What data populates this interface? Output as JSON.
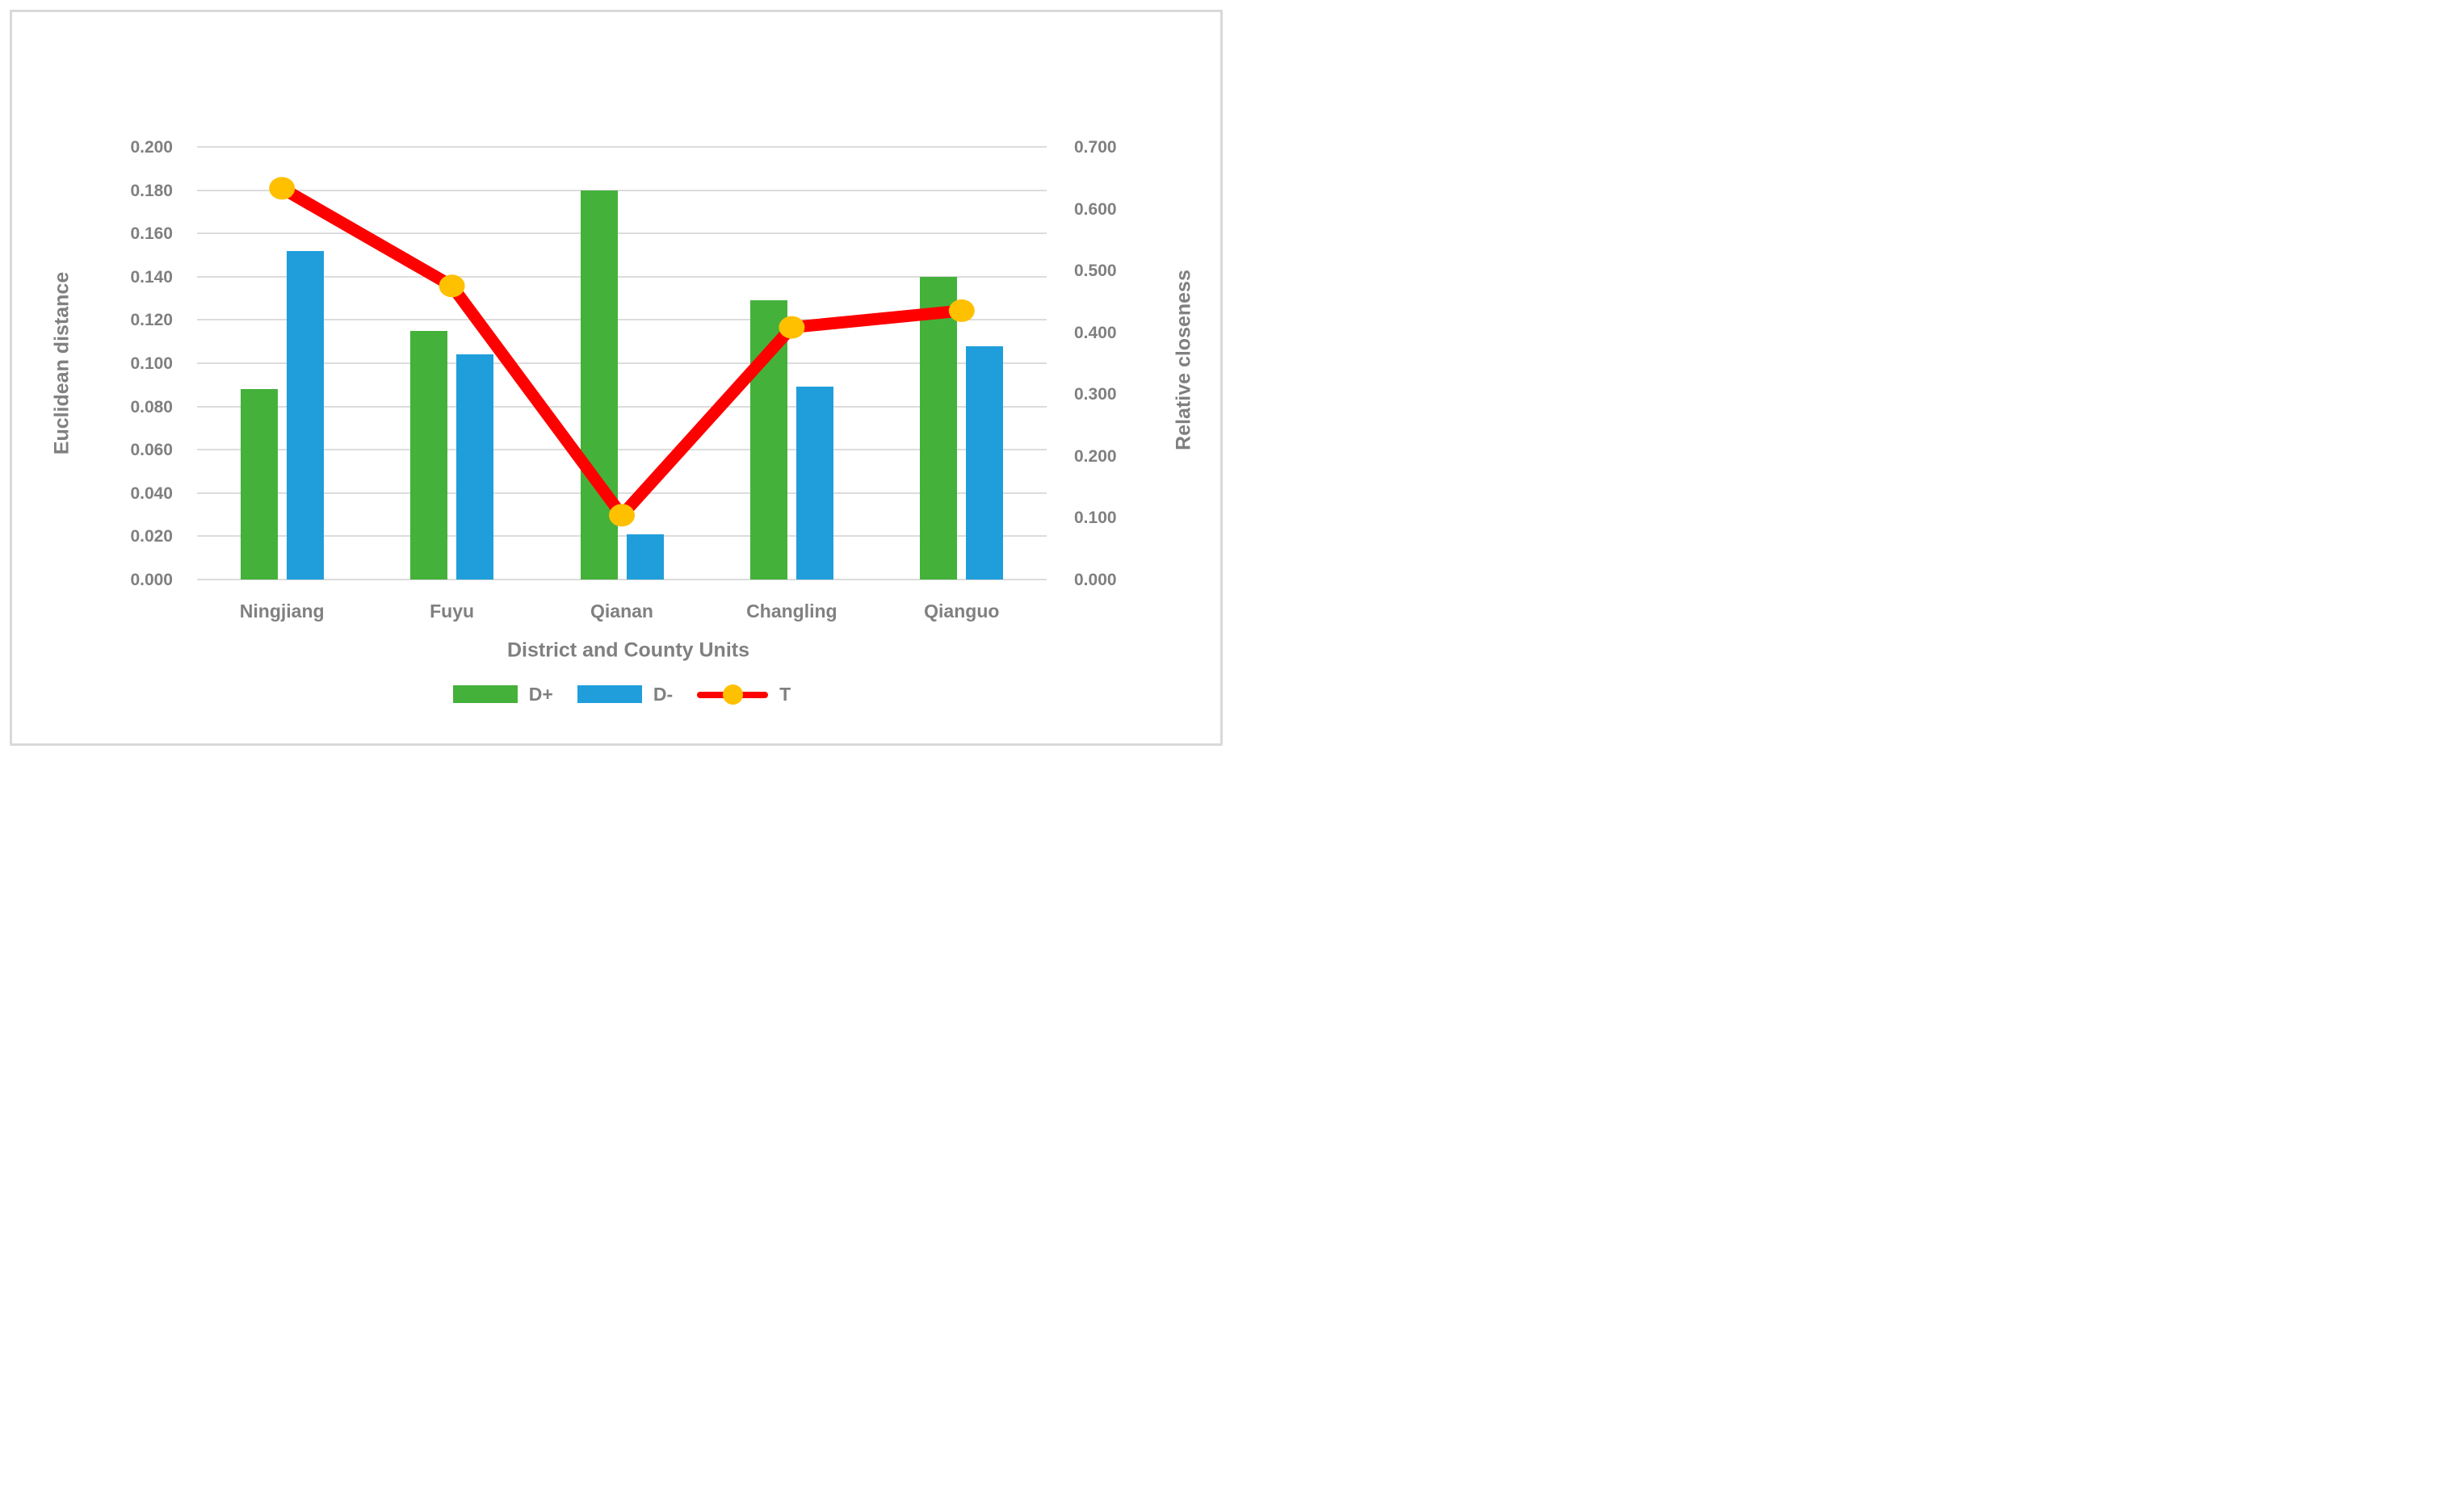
{
  "chart_data": {
    "type": "bar+line combo",
    "title": "",
    "categories": [
      "Ningjiang",
      "Fuyu",
      "Qianan",
      "Changling",
      "Qianguo"
    ],
    "series": [
      {
        "name": "D+",
        "type": "bar",
        "axis": "left",
        "color": "#44b13b",
        "values": [
          0.088,
          0.115,
          0.18,
          0.129,
          0.14
        ]
      },
      {
        "name": "D-",
        "type": "bar",
        "axis": "left",
        "color": "#209edb",
        "values": [
          0.152,
          0.104,
          0.021,
          0.089,
          0.108
        ]
      },
      {
        "name": "T",
        "type": "line",
        "axis": "right",
        "color": "#fe0000",
        "marker_color": "#ffc000",
        "values": [
          0.633,
          0.475,
          0.104,
          0.408,
          0.435
        ]
      }
    ],
    "xlabel": "District and County Units",
    "ylabel_left": "Euclidean distance",
    "ylabel_right": "Relative closeness",
    "y_left": {
      "min": 0.0,
      "max": 0.2,
      "step": 0.02,
      "tick_labels": [
        "0.000",
        "0.020",
        "0.040",
        "0.060",
        "0.080",
        "0.100",
        "0.120",
        "0.140",
        "0.160",
        "0.180",
        "0.200"
      ]
    },
    "y_right": {
      "min": 0.0,
      "max": 0.7,
      "step": 0.1,
      "tick_labels": [
        "0.000",
        "0.100",
        "0.200",
        "0.300",
        "0.400",
        "0.500",
        "0.600",
        "0.700"
      ]
    },
    "grid": true,
    "legend_position": "bottom",
    "colors": {
      "bar_dplus": "#44b13b",
      "bar_dminus": "#209edb",
      "line_t": "#fe0000",
      "marker_t": "#ffc000",
      "text": "#808080",
      "gridline": "#dcdcdc",
      "frame_border": "#d9d9d9",
      "background": "#ffffff"
    }
  }
}
